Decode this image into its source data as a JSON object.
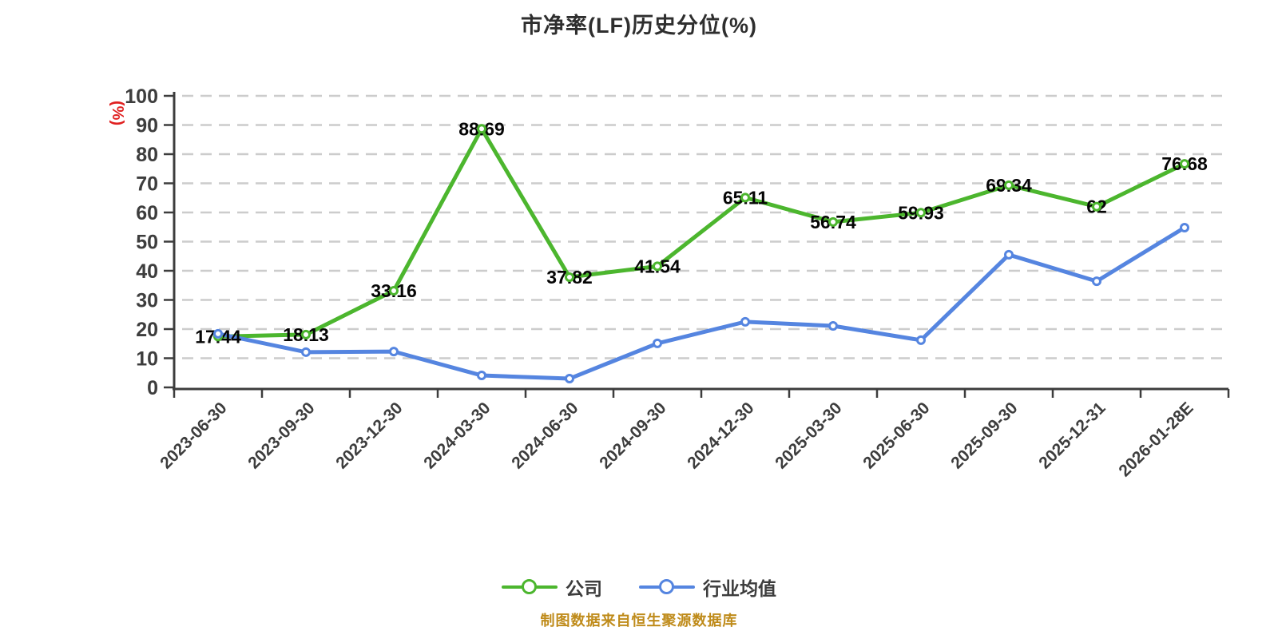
{
  "footer": {
    "caption": "制图数据来自恒生聚源数据库"
  },
  "legend": {
    "items": [
      "公司",
      "行业均值"
    ]
  },
  "chart_data": {
    "type": "line",
    "title": "市净率(LF)历史分位(%)",
    "xlabel": "",
    "ylabel": "(%)",
    "ylim": [
      0,
      100
    ],
    "y_ticks": [
      0,
      10,
      20,
      30,
      40,
      50,
      60,
      70,
      80,
      90,
      100
    ],
    "grid": "horizontal-dashed",
    "grid_color": "#cccccc",
    "axis_color": "#3d3d3d",
    "tick_label_color": "#3d3d3d",
    "value_label_color": "#050505",
    "ylabel_color": "#e02020",
    "legend_position": "bottom",
    "categories": [
      "2023-06-30",
      "2023-09-30",
      "2023-12-30",
      "2024-03-30",
      "2024-06-30",
      "2024-09-30",
      "2024-12-30",
      "2025-03-30",
      "2025-06-30",
      "2025-09-30",
      "2025-12-31",
      "2026-01-28E"
    ],
    "series": [
      {
        "name": "公司",
        "color": "#4CB62E",
        "values": [
          17.44,
          18.13,
          33.16,
          88.69,
          37.82,
          41.54,
          65.11,
          56.74,
          59.93,
          69.34,
          62,
          76.68
        ],
        "labels": [
          "17.44",
          "18.13",
          "33.16",
          "88.69",
          "37.82",
          "41.54",
          "65.11",
          "56.74",
          "59.93",
          "69.34",
          "62",
          "76.68"
        ]
      },
      {
        "name": "行业均值",
        "color": "#5585E0",
        "values": [
          18.4,
          12.1,
          12.3,
          4.1,
          3.0,
          15.1,
          22.5,
          21.1,
          16.2,
          45.5,
          36.4,
          54.8
        ],
        "labels": []
      }
    ]
  }
}
